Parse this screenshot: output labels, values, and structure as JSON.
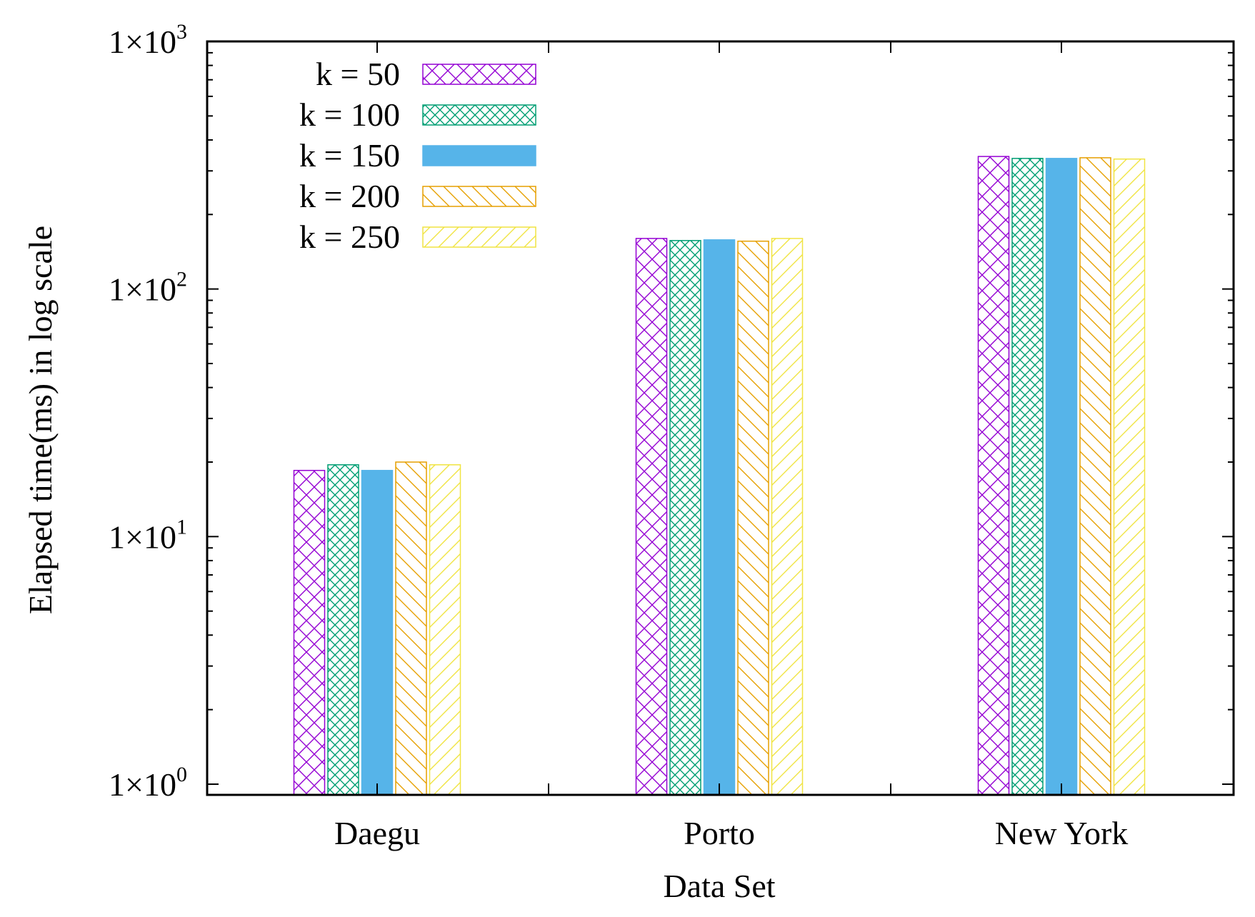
{
  "chart_data": {
    "type": "bar",
    "title": "",
    "xlabel": "Data Set",
    "ylabel": "Elapsed time(ms) in log scale",
    "yscale": "log",
    "ylim": [
      1,
      1000
    ],
    "ytick_base": "1×10",
    "yticks": [
      {
        "value": 1,
        "exponent": "0"
      },
      {
        "value": 10,
        "exponent": "1"
      },
      {
        "value": 100,
        "exponent": "2"
      },
      {
        "value": 1000,
        "exponent": "3"
      }
    ],
    "categories": [
      "Daegu",
      "Porto",
      "New York"
    ],
    "legend_position": "top-left",
    "series": [
      {
        "name": "k = 50",
        "values": [
          18.5,
          160,
          343
        ],
        "color": "#9400d3",
        "pattern": "crosshatch"
      },
      {
        "name": "k = 100",
        "values": [
          19.5,
          157,
          337
        ],
        "color": "#009e73",
        "pattern": "fine-crosshatch"
      },
      {
        "name": "k = 150",
        "values": [
          18.5,
          158,
          337
        ],
        "color": "#56b4e9",
        "pattern": "solid"
      },
      {
        "name": "k = 200",
        "values": [
          20.0,
          156,
          339
        ],
        "color": "#e69f00",
        "pattern": "diagonal-back"
      },
      {
        "name": "k = 250",
        "values": [
          19.5,
          160,
          335
        ],
        "color": "#f0e442",
        "pattern": "diagonal-forward"
      }
    ]
  }
}
